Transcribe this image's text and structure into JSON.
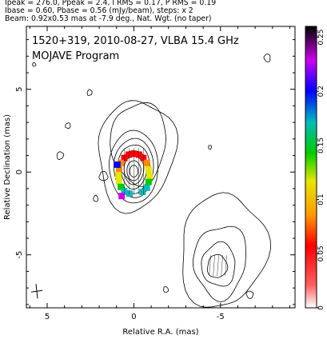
{
  "header": {
    "line1": "Ipeak = 276.0, Ppeak = 2.4, I RMS = 0.17, P RMS = 0.19",
    "line2": "Ibase = 0.60, Pbase = 0.56 (mJy/beam), steps: x 2",
    "line3": "Beam: 0.92x0.53 mas at -7.9 deg., Nat. Wgt. (no taper)"
  },
  "chart_data": {
    "type": "contour",
    "title": "1520+319, 2010-08-27, VLBA 15.4 GHz",
    "subtitle": "MOJAVE Program",
    "xlabel": "Relative R.A. (mas)",
    "ylabel": "Relative Declination (mas)",
    "xlim": [
      6.2,
      -9.3
    ],
    "ylim": [
      -8.2,
      8.8
    ],
    "x_ticks": [
      5,
      0,
      -5
    ],
    "y_ticks": [
      5,
      0,
      -5
    ],
    "colorbar": {
      "ticks": [
        0,
        0.05,
        0.1,
        0.15,
        0.2,
        0.25
      ],
      "range": [
        0,
        0.26
      ]
    },
    "core": {
      "x": 0,
      "y": 0,
      "contour_radii": [
        0.25,
        0.42,
        0.6,
        0.8,
        1.0,
        1.22,
        1.5
      ]
    },
    "jet_region": {
      "x": -4.9,
      "y": -5.6
    },
    "polarization_pixels": [
      {
        "x": -0.3,
        "y": 1.05,
        "v": 0.02
      },
      {
        "x": -0.55,
        "y": 0.85,
        "v": 0.05
      },
      {
        "x": -0.75,
        "y": 0.55,
        "v": 0.07
      },
      {
        "x": -0.85,
        "y": 0.15,
        "v": 0.1
      },
      {
        "x": -0.9,
        "y": -0.25,
        "v": 0.12
      },
      {
        "x": -0.85,
        "y": -0.6,
        "v": 0.14
      },
      {
        "x": -0.75,
        "y": -0.95,
        "v": 0.16
      },
      {
        "x": -0.5,
        "y": -1.2,
        "v": 0.17
      },
      {
        "x": 0.0,
        "y": 1.1,
        "v": 0.02
      },
      {
        "x": 0.3,
        "y": 1.05,
        "v": 0.03
      },
      {
        "x": 0.55,
        "y": 0.85,
        "v": 0.05
      },
      {
        "x": 0.75,
        "y": 0.55,
        "v": 0.07
      },
      {
        "x": 0.85,
        "y": 0.2,
        "v": 0.09
      },
      {
        "x": 0.9,
        "y": -0.2,
        "v": 0.11
      },
      {
        "x": 0.85,
        "y": -0.55,
        "v": 0.12
      },
      {
        "x": 0.75,
        "y": -0.9,
        "v": 0.15
      },
      {
        "x": 0.55,
        "y": -1.15,
        "v": 0.17
      },
      {
        "x": 0.25,
        "y": -1.3,
        "v": 0.19
      },
      {
        "x": 0.95,
        "y": 0.45,
        "v": 0.21
      },
      {
        "x": 0.7,
        "y": -1.45,
        "v": 0.24
      }
    ],
    "colors": {
      "colorbar_stops": [
        "#ffffff",
        "#ff0000",
        "#ff8800",
        "#ffff00",
        "#00dd00",
        "#00cccc",
        "#0000ff",
        "#cc00ff",
        "#000000"
      ]
    }
  }
}
